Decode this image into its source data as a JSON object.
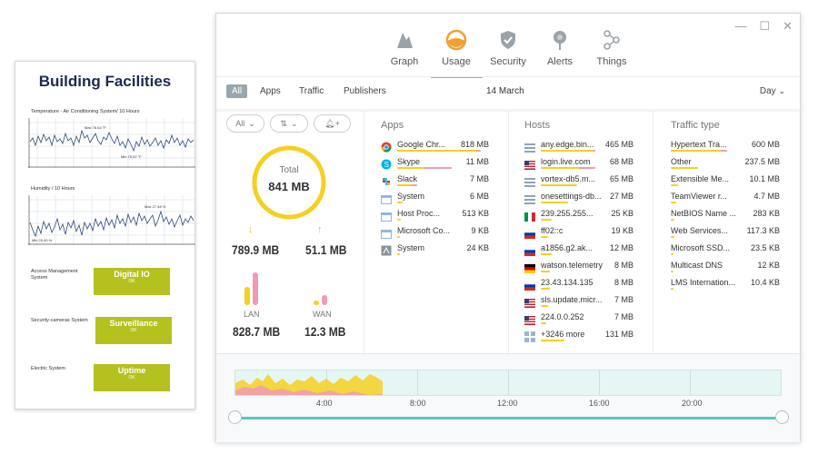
{
  "facilities": {
    "title": "Building Facilities",
    "temp_label": "Temperature - Air Conditioning System/ 10 Hours",
    "temp_max": "Max 76.64 °F",
    "temp_min": "Min 75.02 °F",
    "hum_label": "Humidity / 10 Hours",
    "hum_max": "Max 27.48 %",
    "hum_min": "Min 25.40 %",
    "systems": [
      {
        "label": "Access Management System",
        "badge": "Digital IO",
        "status": "OK"
      },
      {
        "label": "Security-cameras System",
        "badge": "Surveillance",
        "status": "OK"
      },
      {
        "label": "Electric System",
        "badge": "Uptime",
        "status": "OK"
      }
    ],
    "accent": "#b5c11f"
  },
  "nav": {
    "items": [
      {
        "label": "Graph",
        "icon": "graph-icon"
      },
      {
        "label": "Usage",
        "icon": "usage-gauge-icon"
      },
      {
        "label": "Security",
        "icon": "shield-icon"
      },
      {
        "label": "Alerts",
        "icon": "alert-pin-icon"
      },
      {
        "label": "Things",
        "icon": "things-share-icon"
      }
    ],
    "active": "Usage"
  },
  "filters": {
    "all": "All",
    "apps": "Apps",
    "traffic": "Traffic",
    "publishers": "Publishers",
    "date": "14 March",
    "period": "Day"
  },
  "summary": {
    "all_filter": "All",
    "total_label": "Total",
    "total": "841 MB",
    "down": "789.9 MB",
    "up": "51.1 MB",
    "lan_label": "LAN",
    "lan": "828.7 MB",
    "wan_label": "WAN",
    "wan": "12.3 MB"
  },
  "apps": {
    "title": "Apps",
    "rows": [
      {
        "name": "Google Chr...",
        "value": "818 MB",
        "icon": "chrome-icon"
      },
      {
        "name": "Skype",
        "value": "11 MB",
        "icon": "skype-icon"
      },
      {
        "name": "Slack",
        "value": "7 MB",
        "icon": "slack-icon"
      },
      {
        "name": "System",
        "value": "6 MB",
        "icon": "window-icon"
      },
      {
        "name": "Host Proc...",
        "value": "513 KB",
        "icon": "window-icon"
      },
      {
        "name": "Microsoft Co...",
        "value": "9 KB",
        "icon": "window-icon"
      },
      {
        "name": "System",
        "value": "24 KB",
        "icon": "system-icon"
      }
    ]
  },
  "hosts": {
    "title": "Hosts",
    "rows": [
      {
        "name": "any.edge.bin...",
        "value": "465 MB",
        "icon": "server-flag-icon"
      },
      {
        "name": "login.live.com",
        "value": "68 MB",
        "icon": "us-flag-icon"
      },
      {
        "name": "vortex-db5.m...",
        "value": "65 MB",
        "icon": "server-flag-icon"
      },
      {
        "name": "onesettings-db...",
        "value": "27 MB",
        "icon": "server-flag-icon"
      },
      {
        "name": "239.255.255...",
        "value": "25 KB",
        "icon": "it-flag-icon"
      },
      {
        "name": "ff02::c",
        "value": "19 KB",
        "icon": "ru-flag-icon"
      },
      {
        "name": "a1856.g2.ak...",
        "value": "12 MB",
        "icon": "ru-flag-icon"
      },
      {
        "name": "watson.telemetry",
        "value": "8 MB",
        "icon": "de-flag-icon"
      },
      {
        "name": "23.43.134.135",
        "value": "8 MB",
        "icon": "ru-flag-icon"
      },
      {
        "name": "sls.update.micr...",
        "value": "7 MB",
        "icon": "us-flag-icon"
      },
      {
        "name": "224.0.0.252",
        "value": "7 MB",
        "icon": "us-flag-icon"
      },
      {
        "name": "+3246 more",
        "value": "131 MB",
        "icon": "more-grid-icon"
      }
    ]
  },
  "traffic": {
    "title": "Traffic type",
    "rows": [
      {
        "name": "Hypertext Tra...",
        "value": "600 MB"
      },
      {
        "name": "Other",
        "value": "237.5 MB"
      },
      {
        "name": "Extensible Me...",
        "value": "10.1 MB"
      },
      {
        "name": "TeamViewer r...",
        "value": "4.7 MB"
      },
      {
        "name": "NetBIOS Name ...",
        "value": "283 KB"
      },
      {
        "name": "Web Services...",
        "value": "117.3 KB"
      },
      {
        "name": "Microsoft SSD...",
        "value": "23.5 KB"
      },
      {
        "name": "Multicast DNS",
        "value": "12 KB"
      },
      {
        "name": "LMS Internation...",
        "value": "10.4 KB"
      }
    ]
  },
  "timeline": {
    "ticks": [
      "4:00",
      "8:00",
      "12:00",
      "16:00",
      "20:00"
    ]
  },
  "colors": {
    "yellow": "#f5d020",
    "pink": "#ef9bb5",
    "teal": "#59c6c0",
    "orange": "#f0a030"
  }
}
